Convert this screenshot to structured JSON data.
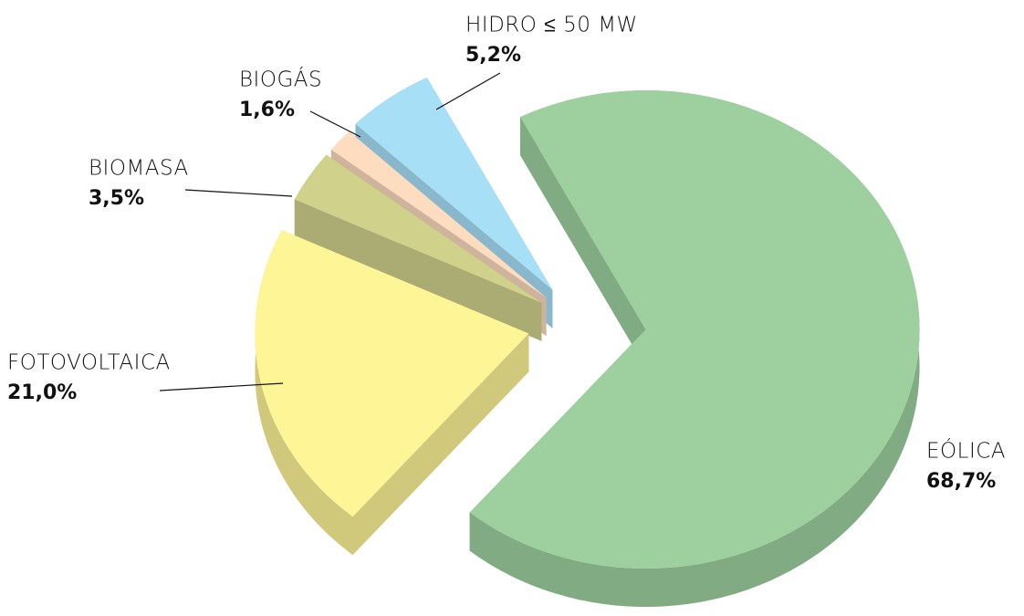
{
  "chart_data": {
    "type": "pie",
    "categories": [
      "EÓLICA",
      "FOTOVOLTAICA",
      "BIOMASA",
      "BIOGÁS",
      "HIDRO ≤ 50 MW"
    ],
    "values": [
      68.7,
      21.0,
      3.5,
      1.6,
      5.2
    ],
    "value_labels": [
      "68,7%",
      "21,0%",
      "3,5%",
      "1,6%",
      "5,2%"
    ],
    "colors": [
      "#9dd09e",
      "#fef597",
      "#d0d28c",
      "#fddcc0",
      "#a7dff7"
    ]
  }
}
